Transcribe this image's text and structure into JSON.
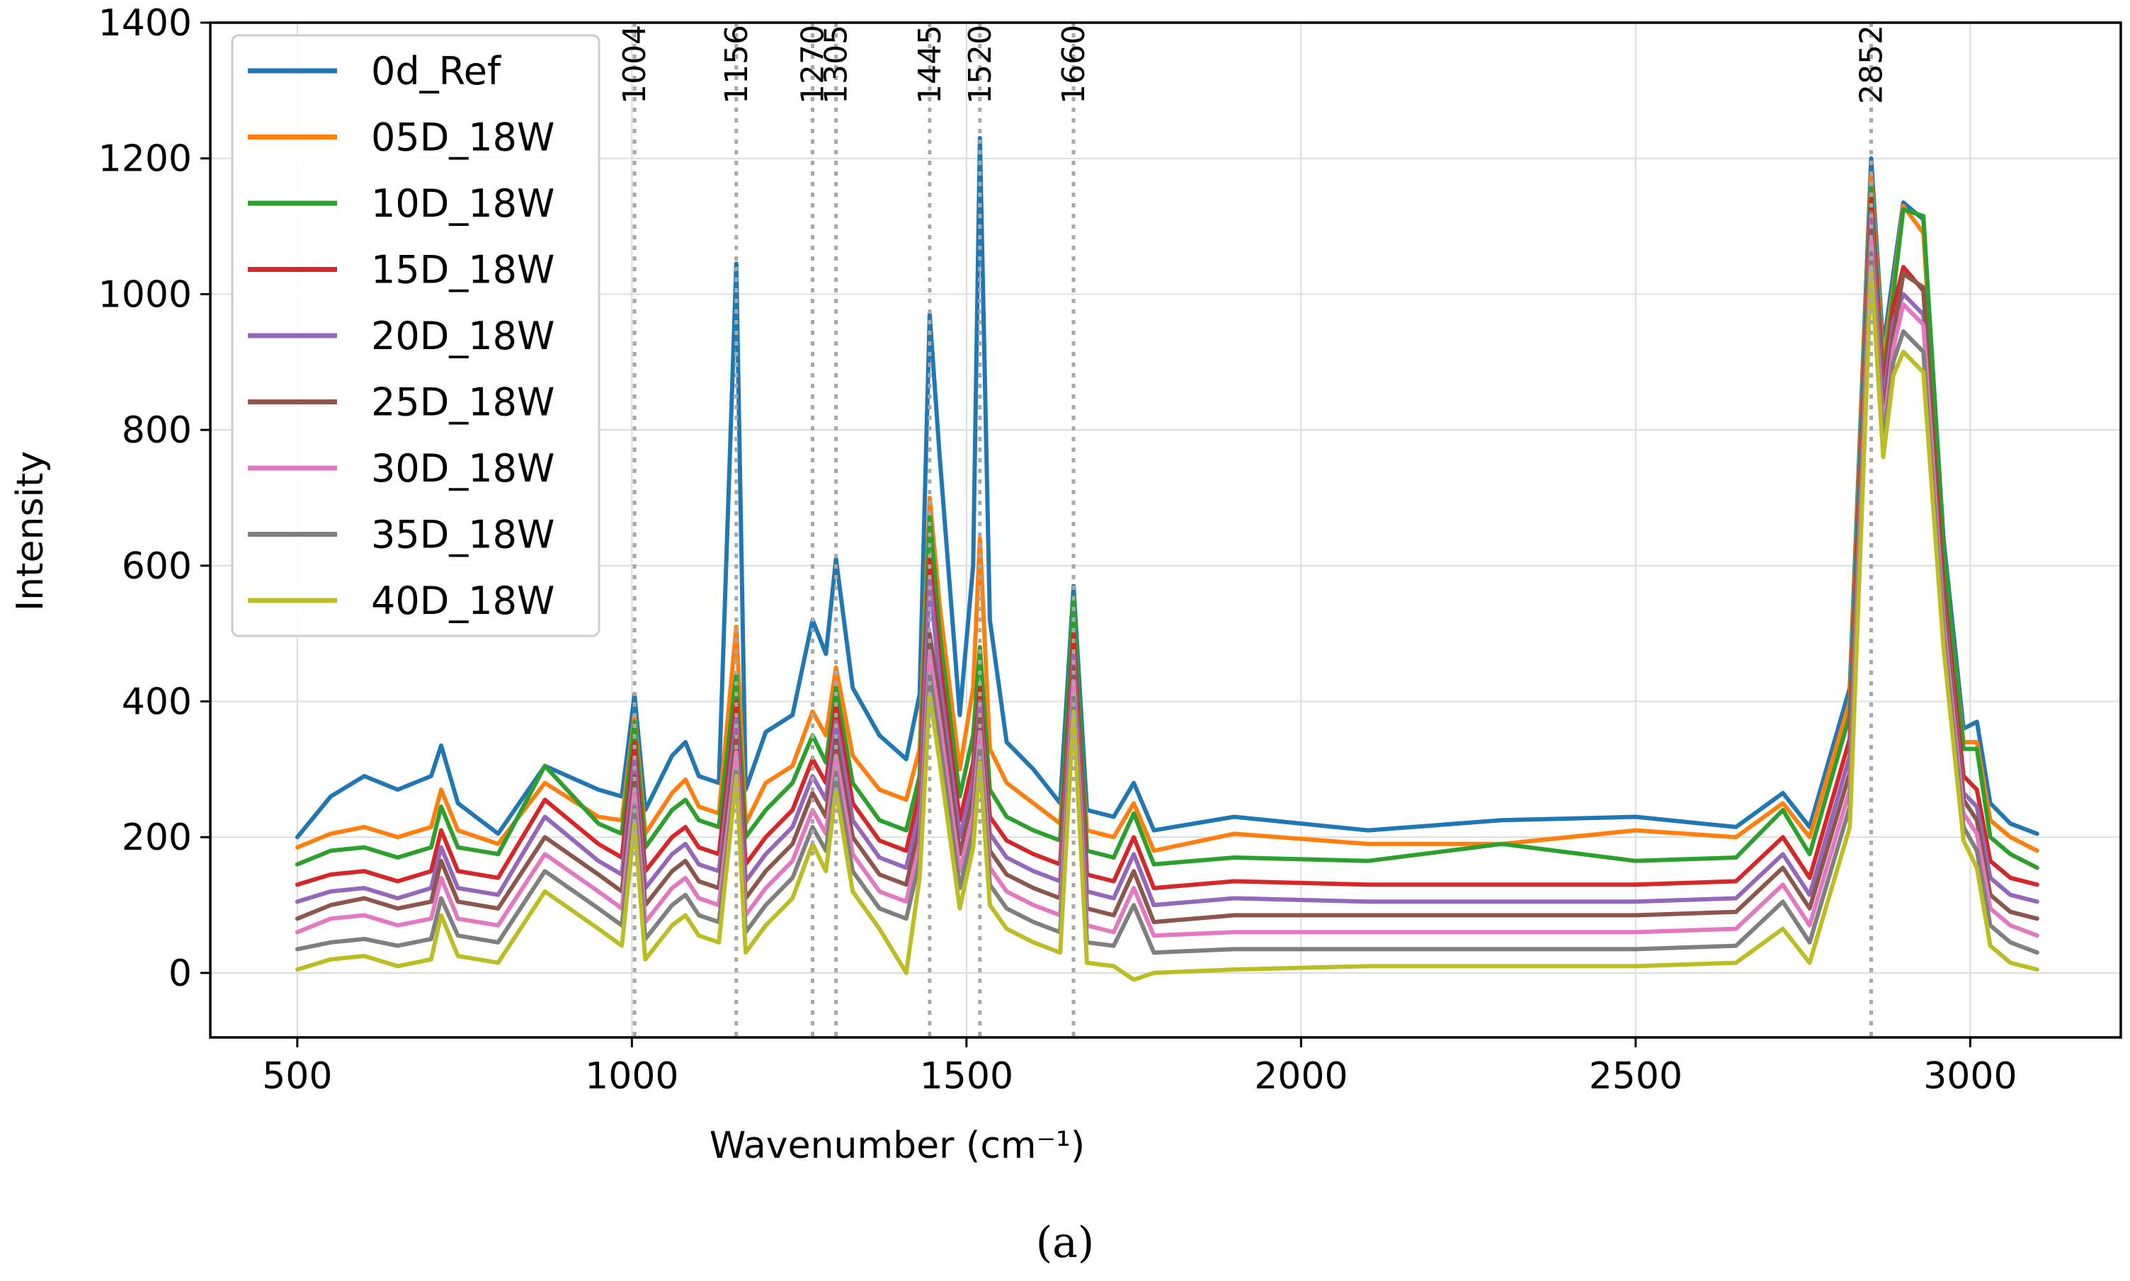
{
  "chart_data": {
    "type": "line",
    "title": "",
    "xlabel": "Wavenumber (cm⁻¹)",
    "ylabel": "Intensity",
    "caption": "(a)",
    "xlim": [
      370,
      3225
    ],
    "ylim": [
      -95,
      1400
    ],
    "xticks": [
      500,
      1000,
      1500,
      2000,
      2500,
      3000
    ],
    "yticks": [
      0,
      200,
      400,
      600,
      800,
      1000,
      1200,
      1400
    ],
    "grid": true,
    "legend_position": "upper-left",
    "peak_markers": [
      {
        "x": 1004,
        "label": "1004"
      },
      {
        "x": 1156,
        "label": "1156"
      },
      {
        "x": 1270,
        "label": "1270"
      },
      {
        "x": 1305,
        "label": "1305"
      },
      {
        "x": 1445,
        "label": "1445"
      },
      {
        "x": 1520,
        "label": "1520"
      },
      {
        "x": 1660,
        "label": "1660"
      },
      {
        "x": 2852,
        "label": "2852"
      }
    ],
    "x": [
      500,
      550,
      600,
      650,
      700,
      715,
      740,
      800,
      870,
      950,
      985,
      1004,
      1020,
      1060,
      1080,
      1100,
      1130,
      1156,
      1170,
      1200,
      1240,
      1270,
      1290,
      1305,
      1330,
      1370,
      1410,
      1430,
      1445,
      1460,
      1490,
      1510,
      1520,
      1535,
      1560,
      1600,
      1640,
      1660,
      1680,
      1720,
      1750,
      1780,
      1900,
      2100,
      2300,
      2500,
      2650,
      2720,
      2760,
      2820,
      2852,
      2870,
      2885,
      2900,
      2930,
      2960,
      2990,
      3010,
      3030,
      3060,
      3100
    ],
    "series": [
      {
        "name": "0d_Ref",
        "color": "#1f77b4",
        "values": [
          200,
          260,
          290,
          270,
          290,
          335,
          250,
          205,
          305,
          270,
          260,
          410,
          240,
          320,
          340,
          290,
          280,
          1045,
          270,
          355,
          380,
          520,
          470,
          610,
          420,
          350,
          315,
          410,
          970,
          760,
          380,
          600,
          1230,
          520,
          340,
          300,
          250,
          570,
          240,
          230,
          280,
          210,
          230,
          210,
          225,
          230,
          215,
          265,
          215,
          420,
          1200,
          920,
          1030,
          1135,
          1110,
          640,
          360,
          370,
          250,
          220,
          205
        ]
      },
      {
        "name": "05D_18W",
        "color": "#ff7f0e",
        "values": [
          185,
          205,
          215,
          200,
          215,
          270,
          210,
          190,
          280,
          230,
          225,
          380,
          205,
          265,
          285,
          245,
          235,
          510,
          220,
          280,
          305,
          385,
          350,
          450,
          320,
          270,
          255,
          330,
          700,
          540,
          300,
          420,
          640,
          330,
          280,
          250,
          220,
          490,
          210,
          200,
          250,
          180,
          205,
          190,
          190,
          210,
          200,
          250,
          200,
          400,
          1175,
          900,
          1010,
          1130,
          1090,
          620,
          340,
          340,
          225,
          200,
          180
        ]
      },
      {
        "name": "10D_18W",
        "color": "#2ca02c",
        "values": [
          160,
          180,
          185,
          170,
          185,
          245,
          185,
          175,
          305,
          220,
          205,
          370,
          185,
          240,
          255,
          225,
          215,
          440,
          200,
          240,
          280,
          350,
          310,
          420,
          280,
          225,
          210,
          290,
          675,
          500,
          260,
          350,
          480,
          270,
          230,
          210,
          195,
          555,
          180,
          170,
          235,
          160,
          170,
          165,
          190,
          165,
          170,
          240,
          175,
          380,
          1160,
          880,
          1000,
          1125,
          1115,
          630,
          330,
          330,
          200,
          175,
          155
        ]
      },
      {
        "name": "15D_18W",
        "color": "#d62728",
        "values": [
          130,
          145,
          150,
          135,
          150,
          210,
          150,
          140,
          255,
          190,
          170,
          340,
          150,
          200,
          215,
          185,
          175,
          400,
          160,
          200,
          240,
          315,
          280,
          395,
          250,
          195,
          180,
          265,
          610,
          460,
          225,
          310,
          420,
          230,
          195,
          175,
          160,
          500,
          145,
          135,
          200,
          125,
          135,
          130,
          130,
          130,
          135,
          200,
          140,
          345,
          1140,
          860,
          980,
          1040,
          1005,
          570,
          290,
          270,
          165,
          140,
          130
        ]
      },
      {
        "name": "20D_18W",
        "color": "#9467bd",
        "values": [
          105,
          120,
          125,
          110,
          125,
          185,
          125,
          115,
          230,
          165,
          145,
          315,
          125,
          175,
          190,
          160,
          150,
          375,
          135,
          175,
          215,
          290,
          255,
          370,
          225,
          170,
          155,
          240,
          580,
          430,
          200,
          285,
          400,
          205,
          170,
          150,
          135,
          470,
          120,
          110,
          175,
          100,
          110,
          105,
          105,
          105,
          110,
          175,
          115,
          320,
          1120,
          840,
          960,
          1000,
          970,
          550,
          265,
          245,
          140,
          115,
          105
        ]
      },
      {
        "name": "25D_18W",
        "color": "#8c564b",
        "values": [
          80,
          100,
          110,
          95,
          105,
          165,
          105,
          95,
          200,
          145,
          120,
          290,
          100,
          150,
          165,
          135,
          125,
          350,
          110,
          150,
          190,
          265,
          230,
          345,
          200,
          145,
          130,
          215,
          500,
          400,
          175,
          260,
          380,
          180,
          145,
          125,
          110,
          450,
          95,
          85,
          150,
          75,
          85,
          85,
          85,
          85,
          90,
          155,
          95,
          295,
          1100,
          820,
          940,
          1030,
          1010,
          540,
          255,
          225,
          115,
          90,
          80
        ]
      },
      {
        "name": "30D_18W",
        "color": "#e377c2",
        "values": [
          60,
          80,
          85,
          70,
          80,
          140,
          80,
          70,
          175,
          120,
          95,
          270,
          75,
          125,
          140,
          110,
          100,
          325,
          85,
          125,
          165,
          240,
          205,
          320,
          175,
          120,
          105,
          190,
          470,
          370,
          150,
          235,
          355,
          155,
          120,
          100,
          85,
          430,
          70,
          60,
          125,
          55,
          60,
          60,
          60,
          60,
          65,
          130,
          70,
          270,
          1080,
          800,
          920,
          985,
          955,
          520,
          235,
          205,
          95,
          70,
          55
        ]
      },
      {
        "name": "35D_18W",
        "color": "#7f7f7f",
        "values": [
          35,
          45,
          50,
          40,
          50,
          110,
          55,
          45,
          150,
          95,
          70,
          245,
          50,
          100,
          115,
          85,
          75,
          300,
          60,
          100,
          140,
          215,
          180,
          295,
          150,
          95,
          80,
          165,
          440,
          340,
          125,
          210,
          330,
          130,
          95,
          75,
          60,
          405,
          45,
          40,
          100,
          30,
          35,
          35,
          35,
          35,
          40,
          105,
          45,
          245,
          1060,
          780,
          900,
          945,
          915,
          500,
          215,
          180,
          70,
          45,
          30
        ]
      },
      {
        "name": "40D_18W",
        "color": "#bcbd22",
        "values": [
          5,
          20,
          25,
          10,
          20,
          85,
          25,
          15,
          120,
          65,
          40,
          220,
          20,
          70,
          85,
          55,
          45,
          290,
          30,
          70,
          110,
          190,
          150,
          270,
          120,
          65,
          0,
          140,
          410,
          310,
          95,
          185,
          310,
          100,
          65,
          45,
          30,
          385,
          15,
          10,
          -10,
          0,
          5,
          10,
          10,
          10,
          15,
          65,
          15,
          215,
          1040,
          760,
          880,
          915,
          885,
          480,
          195,
          155,
          40,
          15,
          5
        ]
      }
    ]
  }
}
